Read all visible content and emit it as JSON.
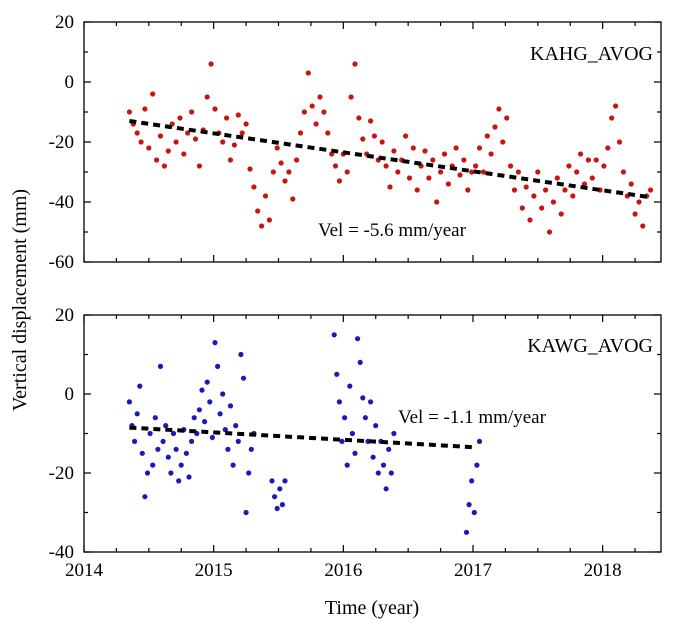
{
  "figure": {
    "ylabel": "Vertical displacement (mm)",
    "xlabel": "Time (year)"
  },
  "chart_data": [
    {
      "type": "scatter",
      "title": "KAHG_AVOG",
      "xlabel": "Time (year)",
      "ylabel": "Vertical displacement (mm)",
      "xlim": [
        2014,
        2018.45
      ],
      "ylim": [
        -60,
        20
      ],
      "yticks": [
        20,
        0,
        -20,
        -40,
        -60
      ],
      "xticks": [
        2014,
        2015,
        2016,
        2017,
        2018
      ],
      "color": "#c8150f",
      "annotation": "Vel = -5.6 mm/year",
      "trend": {
        "x": [
          2014.35,
          2018.38
        ],
        "y": [
          -13,
          -38.5
        ]
      },
      "series": [
        {
          "name": "KAHG_AVOG",
          "points": [
            [
              2014.35,
              -10
            ],
            [
              2014.38,
              -14
            ],
            [
              2014.41,
              -17
            ],
            [
              2014.44,
              -20
            ],
            [
              2014.47,
              -9
            ],
            [
              2014.5,
              -22
            ],
            [
              2014.53,
              -4
            ],
            [
              2014.56,
              -26
            ],
            [
              2014.59,
              -18
            ],
            [
              2014.62,
              -28
            ],
            [
              2014.65,
              -23
            ],
            [
              2014.68,
              -14
            ],
            [
              2014.71,
              -20
            ],
            [
              2014.74,
              -12
            ],
            [
              2014.77,
              -24
            ],
            [
              2014.8,
              -17
            ],
            [
              2014.83,
              -10
            ],
            [
              2014.86,
              -19
            ],
            [
              2014.89,
              -28
            ],
            [
              2014.92,
              -16
            ],
            [
              2014.95,
              -5
            ],
            [
              2014.98,
              6
            ],
            [
              2015.01,
              -9
            ],
            [
              2015.04,
              -17
            ],
            [
              2015.07,
              -20
            ],
            [
              2015.1,
              -12
            ],
            [
              2015.13,
              -26
            ],
            [
              2015.16,
              -21
            ],
            [
              2015.19,
              -11
            ],
            [
              2015.22,
              -17
            ],
            [
              2015.25,
              -14
            ],
            [
              2015.28,
              -29
            ],
            [
              2015.31,
              -35
            ],
            [
              2015.34,
              -43
            ],
            [
              2015.37,
              -48
            ],
            [
              2015.4,
              -38
            ],
            [
              2015.43,
              -46
            ],
            [
              2015.46,
              -30
            ],
            [
              2015.49,
              -22
            ],
            [
              2015.52,
              -27
            ],
            [
              2015.55,
              -33
            ],
            [
              2015.58,
              -30
            ],
            [
              2015.61,
              -39
            ],
            [
              2015.64,
              -26
            ],
            [
              2015.67,
              -17
            ],
            [
              2015.7,
              -10
            ],
            [
              2015.73,
              3
            ],
            [
              2015.76,
              -8
            ],
            [
              2015.79,
              -14
            ],
            [
              2015.82,
              -5
            ],
            [
              2015.85,
              -10
            ],
            [
              2015.88,
              -17
            ],
            [
              2015.91,
              -24
            ],
            [
              2015.94,
              -28
            ],
            [
              2015.97,
              -33
            ],
            [
              2016.0,
              -24
            ],
            [
              2016.03,
              -30
            ],
            [
              2016.06,
              -5
            ],
            [
              2016.09,
              6
            ],
            [
              2016.12,
              -12
            ],
            [
              2016.15,
              -19
            ],
            [
              2016.18,
              -24
            ],
            [
              2016.21,
              -13
            ],
            [
              2016.24,
              -18
            ],
            [
              2016.27,
              -26
            ],
            [
              2016.3,
              -20
            ],
            [
              2016.33,
              -28
            ],
            [
              2016.36,
              -35
            ],
            [
              2016.39,
              -23
            ],
            [
              2016.42,
              -30
            ],
            [
              2016.45,
              -26
            ],
            [
              2016.48,
              -18
            ],
            [
              2016.51,
              -32
            ],
            [
              2016.54,
              -22
            ],
            [
              2016.57,
              -36
            ],
            [
              2016.6,
              -28
            ],
            [
              2016.63,
              -23
            ],
            [
              2016.66,
              -32
            ],
            [
              2016.69,
              -26
            ],
            [
              2016.72,
              -40
            ],
            [
              2016.75,
              -30
            ],
            [
              2016.78,
              -24
            ],
            [
              2016.81,
              -34
            ],
            [
              2016.84,
              -28
            ],
            [
              2016.87,
              -22
            ],
            [
              2016.9,
              -31
            ],
            [
              2016.93,
              -26
            ],
            [
              2016.96,
              -36
            ],
            [
              2016.99,
              -30
            ],
            [
              2017.02,
              -28
            ],
            [
              2017.05,
              -22
            ],
            [
              2017.08,
              -30
            ],
            [
              2017.11,
              -18
            ],
            [
              2017.14,
              -24
            ],
            [
              2017.17,
              -15
            ],
            [
              2017.2,
              -9
            ],
            [
              2017.23,
              -20
            ],
            [
              2017.26,
              -12
            ],
            [
              2017.29,
              -28
            ],
            [
              2017.32,
              -36
            ],
            [
              2017.35,
              -30
            ],
            [
              2017.38,
              -42
            ],
            [
              2017.41,
              -35
            ],
            [
              2017.44,
              -46
            ],
            [
              2017.47,
              -38
            ],
            [
              2017.5,
              -30
            ],
            [
              2017.53,
              -42
            ],
            [
              2017.56,
              -36
            ],
            [
              2017.59,
              -50
            ],
            [
              2017.62,
              -40
            ],
            [
              2017.65,
              -32
            ],
            [
              2017.68,
              -44
            ],
            [
              2017.71,
              -36
            ],
            [
              2017.74,
              -28
            ],
            [
              2017.77,
              -38
            ],
            [
              2017.8,
              -30
            ],
            [
              2017.83,
              -24
            ],
            [
              2017.86,
              -34
            ],
            [
              2017.89,
              -26
            ],
            [
              2017.92,
              -32
            ],
            [
              2017.95,
              -26
            ],
            [
              2017.98,
              -36
            ],
            [
              2018.01,
              -28
            ],
            [
              2018.04,
              -22
            ],
            [
              2018.07,
              -12
            ],
            [
              2018.1,
              -8
            ],
            [
              2018.13,
              -20
            ],
            [
              2018.16,
              -30
            ],
            [
              2018.19,
              -38
            ],
            [
              2018.22,
              -34
            ],
            [
              2018.25,
              -44
            ],
            [
              2018.28,
              -40
            ],
            [
              2018.31,
              -48
            ],
            [
              2018.34,
              -38
            ],
            [
              2018.37,
              -36
            ]
          ]
        }
      ]
    },
    {
      "type": "scatter",
      "title": "KAWG_AVOG",
      "xlabel": "Time (year)",
      "ylabel": "Vertical displacement (mm)",
      "xlim": [
        2014,
        2018.45
      ],
      "ylim": [
        -40,
        20
      ],
      "yticks": [
        20,
        0,
        -20,
        -40
      ],
      "xticks": [
        2014,
        2015,
        2016,
        2017,
        2018
      ],
      "xticklabels": [
        "2014",
        "2015",
        "2016",
        "2017",
        "2018"
      ],
      "color": "#1a1ab8",
      "annotation": "Vel = -1.1 mm/year",
      "trend": {
        "x": [
          2014.35,
          2017.02
        ],
        "y": [
          -8.5,
          -13.5
        ]
      },
      "series": [
        {
          "name": "KAWG_AVOG",
          "points": [
            [
              2014.35,
              -2
            ],
            [
              2014.37,
              -8
            ],
            [
              2014.39,
              -12
            ],
            [
              2014.41,
              -5
            ],
            [
              2014.43,
              2
            ],
            [
              2014.45,
              -15
            ],
            [
              2014.47,
              -26
            ],
            [
              2014.49,
              -20
            ],
            [
              2014.51,
              -10
            ],
            [
              2014.53,
              -18
            ],
            [
              2014.55,
              -6
            ],
            [
              2014.57,
              -14
            ],
            [
              2014.59,
              7
            ],
            [
              2014.61,
              -12
            ],
            [
              2014.63,
              -8
            ],
            [
              2014.65,
              -16
            ],
            [
              2014.67,
              -20
            ],
            [
              2014.69,
              -10
            ],
            [
              2014.71,
              -14
            ],
            [
              2014.73,
              -22
            ],
            [
              2014.75,
              -18
            ],
            [
              2014.77,
              -9
            ],
            [
              2014.79,
              -15
            ],
            [
              2014.81,
              -21
            ],
            [
              2014.83,
              -12
            ],
            [
              2014.85,
              -6
            ],
            [
              2014.87,
              -10
            ],
            [
              2014.89,
              -4
            ],
            [
              2014.91,
              1
            ],
            [
              2014.93,
              -7
            ],
            [
              2014.95,
              3
            ],
            [
              2014.97,
              -2
            ],
            [
              2014.99,
              -11
            ],
            [
              2015.01,
              13
            ],
            [
              2015.03,
              7
            ],
            [
              2015.05,
              -5
            ],
            [
              2015.07,
              0
            ],
            [
              2015.09,
              -9
            ],
            [
              2015.11,
              -14
            ],
            [
              2015.13,
              -3
            ],
            [
              2015.15,
              -18
            ],
            [
              2015.17,
              -8
            ],
            [
              2015.19,
              -12
            ],
            [
              2015.21,
              10
            ],
            [
              2015.23,
              4
            ],
            [
              2015.25,
              -30
            ],
            [
              2015.27,
              -20
            ],
            [
              2015.29,
              -14
            ],
            [
              2015.31,
              -10
            ],
            [
              2015.45,
              -22
            ],
            [
              2015.47,
              -26
            ],
            [
              2015.49,
              -29
            ],
            [
              2015.51,
              -24
            ],
            [
              2015.53,
              -28
            ],
            [
              2015.55,
              -22
            ],
            [
              2015.93,
              15
            ],
            [
              2015.95,
              5
            ],
            [
              2015.97,
              -2
            ],
            [
              2015.99,
              -12
            ],
            [
              2016.01,
              -6
            ],
            [
              2016.03,
              -18
            ],
            [
              2016.05,
              2
            ],
            [
              2016.07,
              -10
            ],
            [
              2016.09,
              -15
            ],
            [
              2016.11,
              14
            ],
            [
              2016.13,
              8
            ],
            [
              2016.15,
              -1
            ],
            [
              2016.17,
              -6
            ],
            [
              2016.19,
              -12
            ],
            [
              2016.21,
              -2
            ],
            [
              2016.23,
              -16
            ],
            [
              2016.25,
              -8
            ],
            [
              2016.27,
              -20
            ],
            [
              2016.29,
              -12
            ],
            [
              2016.31,
              -18
            ],
            [
              2016.33,
              -24
            ],
            [
              2016.35,
              -14
            ],
            [
              2016.37,
              -20
            ],
            [
              2016.39,
              -10
            ],
            [
              2016.95,
              -35
            ],
            [
              2016.97,
              -28
            ],
            [
              2016.99,
              -22
            ],
            [
              2017.01,
              -30
            ],
            [
              2017.03,
              -18
            ],
            [
              2017.05,
              -12
            ]
          ]
        }
      ]
    }
  ]
}
